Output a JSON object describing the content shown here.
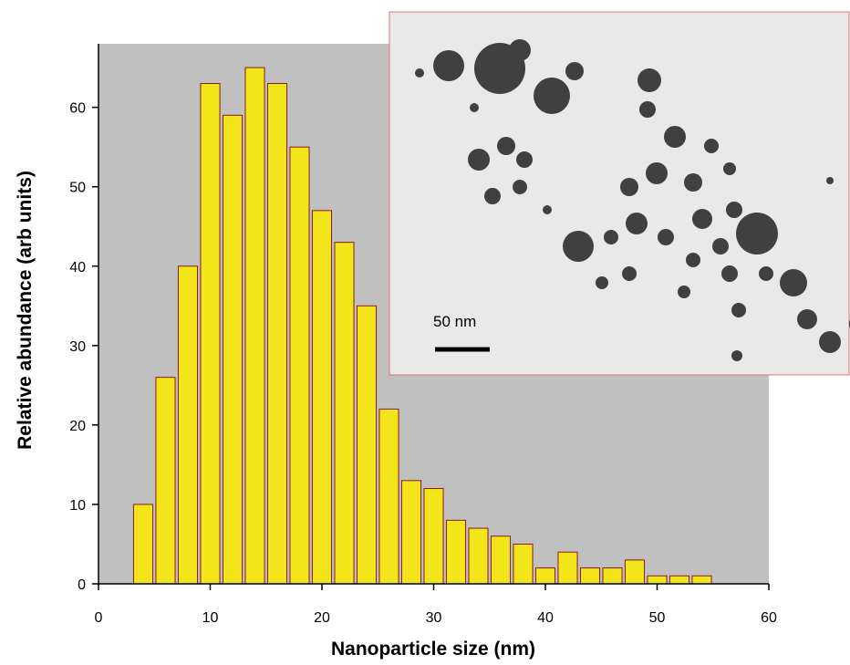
{
  "chart_data": {
    "type": "histogram",
    "xlabel": "Nanoparticle size (nm)",
    "ylabel": "Relative abundance (arb units)",
    "bins": [
      3,
      5,
      7,
      9,
      11,
      13,
      15,
      17,
      19,
      21,
      23,
      25,
      27,
      29,
      31,
      33,
      35,
      37,
      39,
      41,
      43,
      45,
      47,
      49,
      51,
      53,
      55
    ],
    "values": [
      10,
      26,
      40,
      63,
      59,
      65,
      63,
      55,
      47,
      43,
      35,
      22,
      13,
      12,
      8,
      7,
      6,
      5,
      2,
      4,
      2,
      2,
      3,
      1,
      1,
      1
    ],
    "color": "#f2e61a",
    "edge_color": "#8b1a1a",
    "background": "#c0c0c0",
    "xlim": [
      0,
      60
    ],
    "xticks": [
      0,
      10,
      20,
      30,
      40,
      50,
      60
    ],
    "ylim": [
      0,
      68
    ],
    "yticks": [
      0,
      10,
      20,
      30,
      40,
      50,
      60
    ],
    "inset_label": "50 nm"
  }
}
